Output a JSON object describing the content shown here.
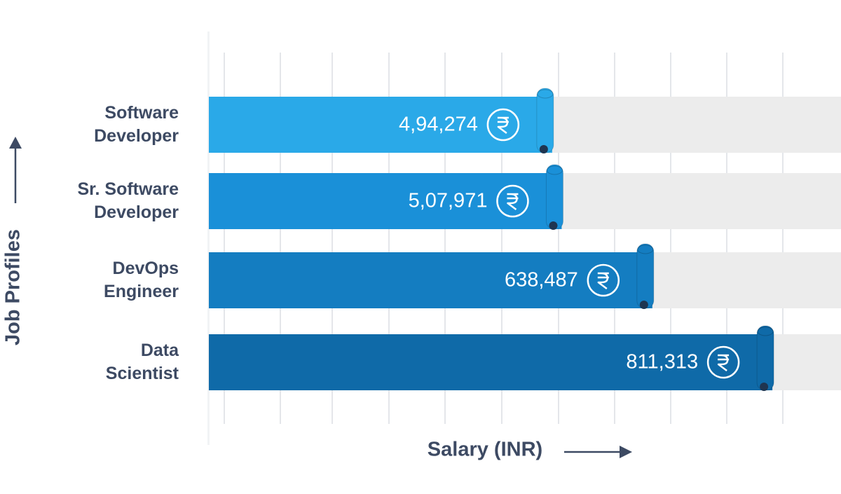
{
  "chart_data": {
    "type": "bar",
    "orientation": "horizontal",
    "x_label": "Salary (INR)",
    "y_label": "Job Profiles",
    "categories": [
      "Software Developer",
      "Sr. Software Developer",
      "DevOps Engineer",
      "Data Scientist"
    ],
    "values": [
      494274,
      507971,
      638487,
      811313
    ],
    "value_labels": [
      "4,94,274",
      "5,07,971",
      "638,487",
      "811,313"
    ],
    "colors": [
      "#2aa9e8",
      "#1a90d8",
      "#147dc1",
      "#0f6aa8"
    ],
    "xlim": [
      0,
      900000
    ]
  }
}
